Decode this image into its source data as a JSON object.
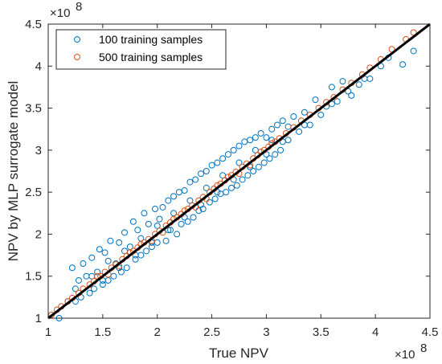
{
  "chart_data": {
    "type": "scatter",
    "xlabel": "True NPV",
    "ylabel": "NPV by MLP surrogate model",
    "x_exponent_label": "×10",
    "x_exponent": "8",
    "y_exponent_label": "×10",
    "y_exponent": "8",
    "xlim": [
      1,
      4.5
    ],
    "ylim": [
      1,
      4.5
    ],
    "xticks": [
      "1",
      "1.5",
      "2",
      "2.5",
      "3",
      "3.5",
      "4",
      "4.5"
    ],
    "yticks": [
      "1",
      "1.5",
      "2",
      "2.5",
      "3",
      "3.5",
      "4",
      "4.5"
    ],
    "grid": false,
    "legend_position": "top-left",
    "series": [
      {
        "name": "100 training samples",
        "color": "#0072BD",
        "marker": "open-circle",
        "x": [
          1.1,
          1.18,
          1.22,
          1.25,
          1.28,
          1.3,
          1.32,
          1.35,
          1.38,
          1.4,
          1.42,
          1.45,
          1.47,
          1.5,
          1.52,
          1.55,
          1.57,
          1.6,
          1.62,
          1.65,
          1.67,
          1.7,
          1.72,
          1.75,
          1.78,
          1.8,
          1.82,
          1.85,
          1.88,
          1.9,
          1.92,
          1.95,
          1.98,
          2.0,
          2.02,
          2.05,
          2.08,
          2.1,
          2.12,
          2.15,
          2.18,
          2.2,
          2.22,
          2.25,
          2.28,
          2.3,
          2.33,
          2.35,
          2.38,
          2.4,
          2.42,
          2.45,
          2.48,
          2.5,
          2.53,
          2.55,
          2.58,
          2.6,
          2.63,
          2.65,
          2.68,
          2.7,
          2.73,
          2.75,
          2.78,
          2.8,
          2.83,
          2.85,
          2.88,
          2.9,
          2.93,
          2.95,
          2.98,
          3.0,
          3.03,
          3.05,
          3.08,
          3.1,
          3.13,
          3.15,
          3.2,
          3.25,
          3.3,
          3.35,
          3.4,
          3.45,
          3.5,
          3.55,
          3.6,
          3.65,
          3.7,
          3.78,
          3.85,
          3.95,
          4.05,
          4.12,
          4.25,
          4.35,
          1.25,
          1.4,
          1.55,
          1.7,
          1.85,
          2.0,
          2.15,
          2.3,
          2.45,
          2.6,
          2.75,
          2.9,
          3.05,
          3.2,
          1.5,
          1.65,
          1.8,
          1.95,
          2.1,
          2.25,
          2.4,
          2.55,
          2.7,
          2.85,
          3.0,
          3.15,
          3.35,
          3.6,
          3.75,
          3.9
        ],
        "y": [
          1.0,
          1.2,
          1.6,
          1.2,
          1.45,
          1.25,
          1.65,
          1.5,
          1.3,
          1.72,
          1.35,
          1.55,
          1.82,
          1.4,
          1.78,
          1.45,
          1.92,
          1.5,
          1.65,
          1.9,
          1.55,
          2.02,
          1.6,
          1.85,
          2.15,
          1.7,
          2.05,
          1.75,
          2.25,
          1.8,
          2.12,
          1.85,
          2.3,
          1.9,
          2.18,
          2.32,
          1.92,
          2.4,
          2.05,
          2.45,
          2.0,
          2.5,
          2.12,
          2.52,
          2.15,
          2.62,
          2.2,
          2.65,
          2.28,
          2.72,
          2.3,
          2.75,
          2.38,
          2.82,
          2.42,
          2.85,
          2.48,
          2.9,
          2.5,
          2.95,
          2.55,
          3.0,
          2.58,
          3.05,
          2.65,
          3.1,
          2.7,
          3.12,
          2.75,
          3.15,
          2.8,
          3.2,
          2.85,
          3.15,
          2.9,
          3.25,
          2.95,
          3.3,
          3.0,
          3.35,
          3.12,
          3.4,
          3.22,
          3.45,
          3.3,
          3.6,
          3.42,
          3.52,
          3.75,
          3.58,
          3.82,
          3.65,
          3.78,
          3.85,
          4.0,
          4.1,
          4.02,
          4.18,
          1.35,
          1.5,
          1.68,
          1.8,
          1.95,
          2.1,
          2.25,
          2.4,
          2.55,
          2.7,
          2.85,
          3.0,
          3.12,
          3.28,
          1.45,
          1.6,
          1.75,
          1.9,
          2.05,
          2.2,
          2.35,
          2.5,
          2.65,
          2.8,
          2.95,
          3.1,
          3.3,
          3.55,
          3.7,
          3.85
        ]
      },
      {
        "name": "500 training samples",
        "color": "#D95319",
        "marker": "open-circle",
        "x": [
          1.03,
          1.08,
          1.12,
          1.18,
          1.22,
          1.28,
          1.32,
          1.38,
          1.42,
          1.48,
          1.52,
          1.58,
          1.62,
          1.68,
          1.72,
          1.78,
          1.82,
          1.88,
          1.92,
          1.98,
          2.02,
          2.08,
          2.12,
          2.18,
          2.22,
          2.28,
          2.32,
          2.38,
          2.42,
          2.48,
          2.52,
          2.58,
          2.62,
          2.68,
          2.72,
          2.78,
          2.82,
          2.88,
          2.92,
          2.98,
          3.02,
          3.08,
          3.12,
          3.18,
          3.25,
          3.32,
          3.4,
          3.48,
          3.55,
          3.62,
          3.7,
          3.78,
          3.88,
          3.95,
          4.05,
          4.15,
          4.28,
          4.35,
          1.45,
          1.65,
          1.85,
          2.05,
          2.25,
          2.45,
          2.65,
          2.85,
          3.05,
          1.55,
          1.75,
          1.95,
          2.15,
          2.35,
          2.55,
          2.75,
          2.95
        ],
        "y": [
          1.04,
          1.1,
          1.14,
          1.2,
          1.24,
          1.3,
          1.35,
          1.4,
          1.44,
          1.5,
          1.55,
          1.6,
          1.64,
          1.7,
          1.74,
          1.8,
          1.84,
          1.9,
          1.94,
          2.0,
          2.04,
          2.1,
          2.14,
          2.2,
          2.24,
          2.3,
          2.34,
          2.4,
          2.44,
          2.5,
          2.54,
          2.6,
          2.64,
          2.7,
          2.74,
          2.8,
          2.84,
          2.9,
          2.94,
          3.0,
          3.04,
          3.1,
          3.14,
          3.2,
          3.27,
          3.35,
          3.42,
          3.5,
          3.57,
          3.63,
          3.72,
          3.8,
          3.9,
          3.98,
          4.08,
          4.2,
          4.32,
          4.4,
          1.5,
          1.62,
          1.88,
          2.02,
          2.28,
          2.42,
          2.68,
          2.82,
          3.08,
          1.52,
          1.78,
          1.92,
          2.18,
          2.32,
          2.58,
          2.72,
          2.98
        ]
      }
    ],
    "reference_line": {
      "from": [
        1,
        1
      ],
      "to": [
        4.5,
        4.5
      ],
      "color": "#000000"
    }
  }
}
